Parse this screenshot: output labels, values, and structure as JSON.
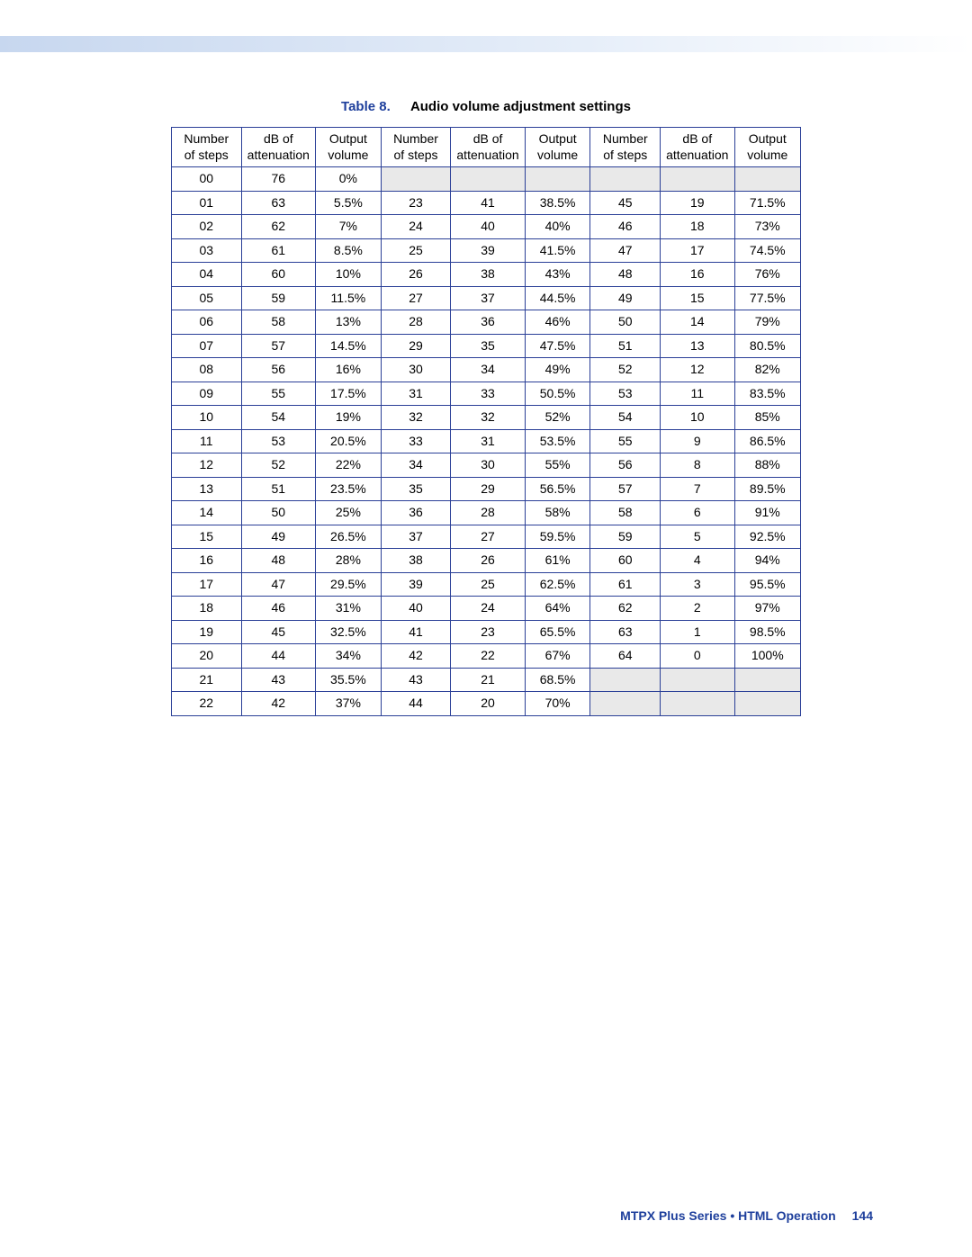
{
  "caption": {
    "label": "Table 8.",
    "title": "Audio volume adjustment settings"
  },
  "table": {
    "type": "table",
    "border_color": "#2a3f97",
    "shade_color": "#e9e9e9",
    "background_color": "#ffffff",
    "font_size_pt": 10,
    "headers": [
      "Number of steps",
      "dB of attenuation",
      "Output volume",
      "Number of steps",
      "dB of attenuation",
      "Output volume",
      "Number of steps",
      "dB of attenuation",
      "Output volume"
    ],
    "header_lines": [
      [
        "Number",
        "of steps"
      ],
      [
        "dB of",
        "attenuation"
      ],
      [
        "Output",
        "volume"
      ],
      [
        "Number",
        "of steps"
      ],
      [
        "dB of",
        "attenuation"
      ],
      [
        "Output",
        "volume"
      ],
      [
        "Number",
        "of steps"
      ],
      [
        "dB of",
        "attenuation"
      ],
      [
        "Output",
        "volume"
      ]
    ],
    "rows": [
      [
        "00",
        "76",
        "0%",
        "",
        "",
        "",
        "",
        "",
        ""
      ],
      [
        "01",
        "63",
        "5.5%",
        "23",
        "41",
        "38.5%",
        "45",
        "19",
        "71.5%"
      ],
      [
        "02",
        "62",
        "7%",
        "24",
        "40",
        "40%",
        "46",
        "18",
        "73%"
      ],
      [
        "03",
        "61",
        "8.5%",
        "25",
        "39",
        "41.5%",
        "47",
        "17",
        "74.5%"
      ],
      [
        "04",
        "60",
        "10%",
        "26",
        "38",
        "43%",
        "48",
        "16",
        "76%"
      ],
      [
        "05",
        "59",
        "11.5%",
        "27",
        "37",
        "44.5%",
        "49",
        "15",
        "77.5%"
      ],
      [
        "06",
        "58",
        "13%",
        "28",
        "36",
        "46%",
        "50",
        "14",
        "79%"
      ],
      [
        "07",
        "57",
        "14.5%",
        "29",
        "35",
        "47.5%",
        "51",
        "13",
        "80.5%"
      ],
      [
        "08",
        "56",
        "16%",
        "30",
        "34",
        "49%",
        "52",
        "12",
        "82%"
      ],
      [
        "09",
        "55",
        "17.5%",
        "31",
        "33",
        "50.5%",
        "53",
        "11",
        "83.5%"
      ],
      [
        "10",
        "54",
        "19%",
        "32",
        "32",
        "52%",
        "54",
        "10",
        "85%"
      ],
      [
        "11",
        "53",
        "20.5%",
        "33",
        "31",
        "53.5%",
        "55",
        "9",
        "86.5%"
      ],
      [
        "12",
        "52",
        "22%",
        "34",
        "30",
        "55%",
        "56",
        "8",
        "88%"
      ],
      [
        "13",
        "51",
        "23.5%",
        "35",
        "29",
        "56.5%",
        "57",
        "7",
        "89.5%"
      ],
      [
        "14",
        "50",
        "25%",
        "36",
        "28",
        "58%",
        "58",
        "6",
        "91%"
      ],
      [
        "15",
        "49",
        "26.5%",
        "37",
        "27",
        "59.5%",
        "59",
        "5",
        "92.5%"
      ],
      [
        "16",
        "48",
        "28%",
        "38",
        "26",
        "61%",
        "60",
        "4",
        "94%"
      ],
      [
        "17",
        "47",
        "29.5%",
        "39",
        "25",
        "62.5%",
        "61",
        "3",
        "95.5%"
      ],
      [
        "18",
        "46",
        "31%",
        "40",
        "24",
        "64%",
        "62",
        "2",
        "97%"
      ],
      [
        "19",
        "45",
        "32.5%",
        "41",
        "23",
        "65.5%",
        "63",
        "1",
        "98.5%"
      ],
      [
        "20",
        "44",
        "34%",
        "42",
        "22",
        "67%",
        "64",
        "0",
        "100%"
      ],
      [
        "21",
        "43",
        "35.5%",
        "43",
        "21",
        "68.5%",
        "",
        "",
        ""
      ],
      [
        "22",
        "42",
        "37%",
        "44",
        "20",
        "70%",
        "",
        "",
        ""
      ]
    ],
    "shaded_cells": [
      {
        "row": 0,
        "cols": [
          3,
          4,
          5,
          6,
          7,
          8
        ]
      },
      {
        "row": 21,
        "cols": [
          6,
          7,
          8
        ]
      },
      {
        "row": 22,
        "cols": [
          6,
          7,
          8
        ]
      }
    ],
    "column_widths_pct": [
      11.1,
      11.8,
      10.4,
      11.1,
      11.8,
      10.4,
      11.1,
      11.8,
      10.5
    ]
  },
  "footer": {
    "text": "MTPX Plus Series • HTML Operation",
    "page": "144",
    "color": "#1e3f9c"
  },
  "top_band": {
    "gradient_from": "#c7d7ef",
    "gradient_to": "#ffffff"
  }
}
